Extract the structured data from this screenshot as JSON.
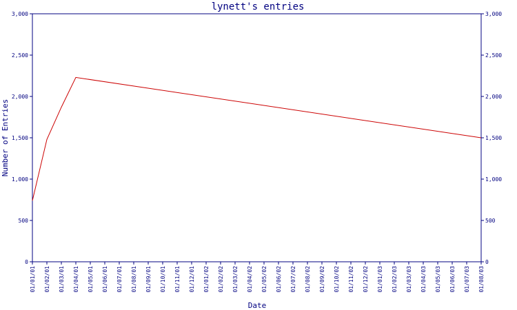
{
  "chart_data": {
    "type": "line",
    "title": "lynett's entries",
    "xlabel": "Date",
    "ylabel": "Number of Entries",
    "ylim": [
      0,
      3000
    ],
    "y_ticks": [
      "0",
      "500",
      "1,000",
      "1,500",
      "2,000",
      "2,500",
      "3,000"
    ],
    "x_tick_labels": [
      "01/01/01",
      "01/02/01",
      "01/03/01",
      "01/04/01",
      "01/05/01",
      "01/06/01",
      "01/07/01",
      "01/08/01",
      "01/09/01",
      "01/10/01",
      "01/11/01",
      "01/12/01",
      "01/01/02",
      "01/02/02",
      "01/03/02",
      "01/04/02",
      "01/05/02",
      "01/06/02",
      "01/07/02",
      "01/08/02",
      "01/09/02",
      "01/10/02",
      "01/11/02",
      "01/12/02",
      "01/01/03",
      "01/02/03",
      "01/03/03",
      "01/04/03",
      "01/05/03",
      "01/06/03",
      "01/07/03",
      "01/08/03"
    ],
    "grid": false,
    "line_color": "#cc0000",
    "axis_color": "#000080",
    "series": [
      {
        "x": [
          "01/01/01",
          "01/02/01",
          "01/03/01",
          "01/04/01",
          "01/08/03"
        ],
        "y": [
          740,
          1480,
          1870,
          2230,
          1500
        ]
      }
    ]
  }
}
